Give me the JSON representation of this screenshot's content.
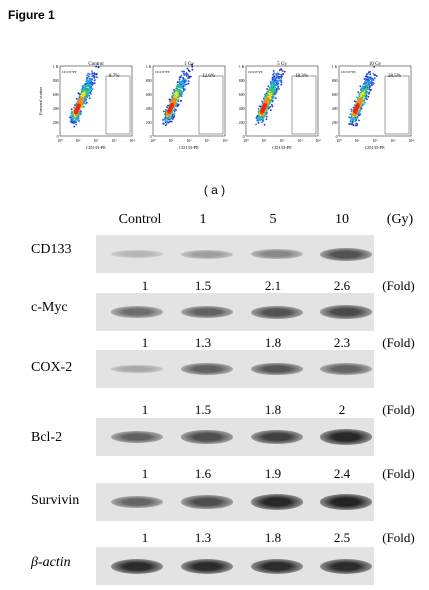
{
  "figure_title": "Figure 1",
  "panel_a_label": "( a )",
  "flow_axis": {
    "y_label": "Forward scatter",
    "x_label": "CD133-PE",
    "y_ticks": [
      "1 K",
      "800",
      "600",
      "400",
      "200",
      "0"
    ],
    "x_ticks": [
      "10⁰",
      "10¹",
      "10²",
      "10³",
      "10⁴"
    ],
    "gate_label": "CD133+PE"
  },
  "flow_panels": [
    {
      "title": "Control",
      "percent": "8.7%"
    },
    {
      "title": "1 Gy",
      "percent": "12.6%"
    },
    {
      "title": "5 Gy",
      "percent": "18.3%"
    },
    {
      "title": "10 Gy",
      "percent": "28.5%"
    }
  ],
  "blot_header": {
    "columns": [
      "Control",
      "1",
      "5",
      "10"
    ],
    "unit": "(Gy)"
  },
  "fold_unit": "(Fold)",
  "blot_rows": [
    {
      "label": "CD133",
      "folds": [
        "1",
        "1.5",
        "2.1",
        "2.6"
      ],
      "intensity": [
        0.18,
        0.3,
        0.42,
        0.7
      ]
    },
    {
      "label": "c-Myc",
      "folds": [
        "1",
        "1.3",
        "1.8",
        "2.3"
      ],
      "intensity": [
        0.55,
        0.62,
        0.7,
        0.74
      ]
    },
    {
      "label": "COX-2",
      "folds": [
        "1",
        "1.5",
        "1.8",
        "2"
      ],
      "intensity": [
        0.25,
        0.62,
        0.68,
        0.6
      ]
    },
    {
      "label": "Bcl-2",
      "folds": [
        "1",
        "1.6",
        "1.9",
        "2.4"
      ],
      "intensity": [
        0.62,
        0.72,
        0.8,
        0.92
      ]
    },
    {
      "label": "Survivin",
      "folds": [
        "1",
        "1.3",
        "1.8",
        "2.5"
      ],
      "intensity": [
        0.6,
        0.72,
        0.92,
        0.95
      ]
    },
    {
      "label": "β-actin",
      "folds": [],
      "intensity": [
        0.9,
        0.9,
        0.9,
        0.9
      ]
    }
  ]
}
